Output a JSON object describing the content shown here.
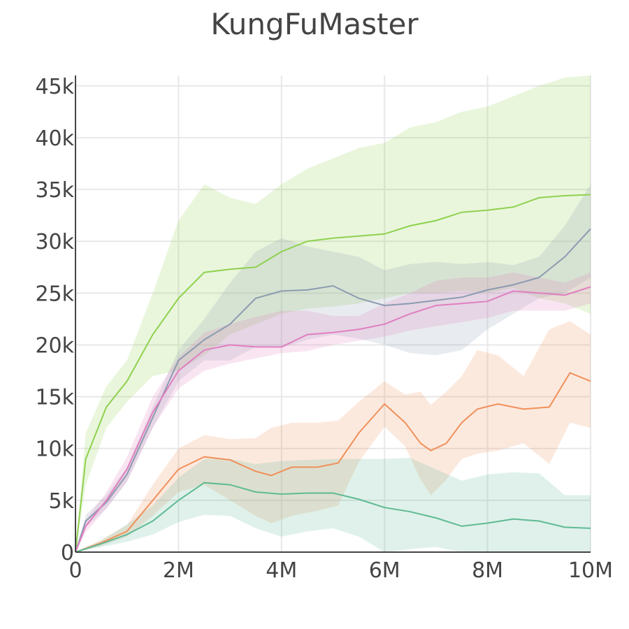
{
  "chart_data": {
    "type": "line",
    "title": "KungFuMaster",
    "xlabel": "",
    "ylabel": "",
    "xlim": [
      0,
      10000000
    ],
    "ylim": [
      0,
      46000
    ],
    "grid": true,
    "x_ticks": [
      {
        "value": 0,
        "label": "0"
      },
      {
        "value": 2000000,
        "label": "2M"
      },
      {
        "value": 4000000,
        "label": "4M"
      },
      {
        "value": 6000000,
        "label": "6M"
      },
      {
        "value": 8000000,
        "label": "8M"
      },
      {
        "value": 10000000,
        "label": "10M"
      }
    ],
    "y_ticks": [
      {
        "value": 0,
        "label": "0"
      },
      {
        "value": 5000,
        "label": "5k"
      },
      {
        "value": 10000,
        "label": "10k"
      },
      {
        "value": 15000,
        "label": "15k"
      },
      {
        "value": 20000,
        "label": "20k"
      },
      {
        "value": 25000,
        "label": "25k"
      },
      {
        "value": 30000,
        "label": "30k"
      },
      {
        "value": 35000,
        "label": "35k"
      },
      {
        "value": 40000,
        "label": "40k"
      },
      {
        "value": 45000,
        "label": "45k"
      }
    ],
    "series": [
      {
        "color": "#8fd14f",
        "x": [
          0,
          200000,
          600000,
          1000000,
          1500000,
          2000000,
          2500000,
          3000000,
          3500000,
          4000000,
          4500000,
          5000000,
          5500000,
          6000000,
          6500000,
          7000000,
          7500000,
          8000000,
          8500000,
          9000000,
          9500000,
          10000000
        ],
        "y": [
          0,
          9000,
          14000,
          16500,
          21000,
          24500,
          27000,
          27300,
          27500,
          29000,
          30000,
          30300,
          30500,
          30700,
          31500,
          32000,
          32800,
          33000,
          33300,
          34200,
          34400,
          34500
        ],
        "upper": [
          0,
          11500,
          16000,
          18500,
          25000,
          32000,
          35500,
          34200,
          33600,
          35500,
          37000,
          38000,
          39000,
          39500,
          41000,
          41500,
          42500,
          43000,
          44000,
          45000,
          45800,
          46000
        ],
        "lower": [
          0,
          6500,
          12000,
          14500,
          17000,
          17500,
          19000,
          21000,
          22000,
          23000,
          23500,
          23700,
          24000,
          24500,
          25000,
          25000,
          25200,
          25000,
          25500,
          24500,
          24000,
          23000
        ]
      },
      {
        "color": "#8c9bb0",
        "x": [
          0,
          200000,
          600000,
          1000000,
          1500000,
          2000000,
          2500000,
          3000000,
          3500000,
          4000000,
          4500000,
          5000000,
          5500000,
          6000000,
          6500000,
          7000000,
          7500000,
          8000000,
          8500000,
          9000000,
          9500000,
          10000000
        ],
        "y": [
          0,
          3000,
          4800,
          7500,
          13000,
          18500,
          20500,
          22000,
          24500,
          25200,
          25300,
          25700,
          24500,
          23800,
          24000,
          24300,
          24600,
          25300,
          25800,
          26500,
          28500,
          31200
        ],
        "upper": [
          0,
          3600,
          5500,
          8200,
          14000,
          19500,
          22500,
          26000,
          29000,
          30300,
          29500,
          29000,
          28500,
          27200,
          27800,
          28000,
          27800,
          28000,
          27700,
          28500,
          31500,
          35500
        ],
        "lower": [
          0,
          2400,
          4200,
          6800,
          12000,
          16500,
          18500,
          18500,
          19800,
          19700,
          20500,
          21000,
          20600,
          20000,
          19200,
          19000,
          19500,
          21500,
          23000,
          24500,
          25000,
          26500
        ]
      },
      {
        "color": "#e07fc0",
        "x": [
          0,
          200000,
          600000,
          1000000,
          1500000,
          2000000,
          2500000,
          3000000,
          3500000,
          4000000,
          4500000,
          5000000,
          5500000,
          6000000,
          6500000,
          7000000,
          7500000,
          8000000,
          8500000,
          9000000,
          9500000,
          10000000
        ],
        "y": [
          0,
          2500,
          5000,
          8000,
          13500,
          17500,
          19500,
          20000,
          19800,
          19800,
          21000,
          21200,
          21500,
          22000,
          23000,
          23800,
          24000,
          24200,
          25200,
          25000,
          24800,
          25600
        ],
        "upper": [
          0,
          3100,
          5800,
          9200,
          15000,
          18800,
          21200,
          22000,
          22700,
          23300,
          23300,
          22800,
          22800,
          24000,
          25000,
          26200,
          26500,
          26500,
          27000,
          26500,
          26000,
          27000
        ],
        "lower": [
          0,
          1900,
          4200,
          6800,
          12000,
          15800,
          17500,
          18200,
          18700,
          19200,
          19400,
          20000,
          20400,
          20800,
          21400,
          21800,
          22200,
          22600,
          23300,
          23300,
          23300,
          24000
        ]
      },
      {
        "color": "#f0905a",
        "x": [
          0,
          500000,
          1000000,
          1500000,
          2000000,
          2500000,
          3000000,
          3500000,
          3800000,
          4200000,
          4700000,
          5100000,
          5500000,
          6000000,
          6400000,
          6700000,
          6900000,
          7200000,
          7500000,
          7800000,
          8200000,
          8700000,
          9200000,
          9600000,
          10000000
        ],
        "y": [
          0,
          900,
          2000,
          5000,
          8000,
          9200,
          8900,
          7800,
          7400,
          8200,
          8200,
          8600,
          11500,
          14300,
          12500,
          10500,
          9800,
          10500,
          12500,
          13800,
          14300,
          13800,
          14000,
          17300,
          16500
        ],
        "upper": [
          0,
          1200,
          2600,
          6500,
          10000,
          11300,
          10900,
          11000,
          12000,
          12500,
          12500,
          12700,
          14500,
          16500,
          15200,
          15500,
          14200,
          15500,
          17000,
          19500,
          19000,
          17000,
          21500,
          22300,
          21000
        ],
        "lower": [
          0,
          600,
          1500,
          3500,
          5800,
          6500,
          5000,
          3500,
          2800,
          3500,
          4000,
          4500,
          8700,
          12100,
          10200,
          7000,
          5500,
          7000,
          9000,
          9500,
          9800,
          10500,
          8500,
          12500,
          12000
        ]
      },
      {
        "color": "#5fba94",
        "x": [
          0,
          500000,
          1000000,
          1500000,
          2000000,
          2500000,
          3000000,
          3500000,
          4000000,
          4500000,
          5000000,
          5500000,
          6000000,
          6500000,
          7000000,
          7500000,
          8000000,
          8500000,
          9000000,
          9500000,
          10000000
        ],
        "y": [
          0,
          800,
          1700,
          3000,
          5000,
          6700,
          6500,
          5800,
          5600,
          5700,
          5700,
          5100,
          4300,
          3900,
          3300,
          2500,
          2800,
          3200,
          3000,
          2400,
          2300
        ],
        "upper": [
          0,
          1100,
          2700,
          4500,
          7200,
          9000,
          9000,
          8500,
          8800,
          8900,
          9000,
          9000,
          9000,
          9100,
          8000,
          6900,
          7500,
          7700,
          7600,
          5500,
          5500
        ],
        "lower": [
          0,
          500,
          1000,
          1700,
          2900,
          3600,
          3500,
          2300,
          1500,
          2000,
          2300,
          1500,
          0,
          300,
          500,
          0,
          0,
          0,
          0,
          0,
          0
        ]
      }
    ]
  }
}
